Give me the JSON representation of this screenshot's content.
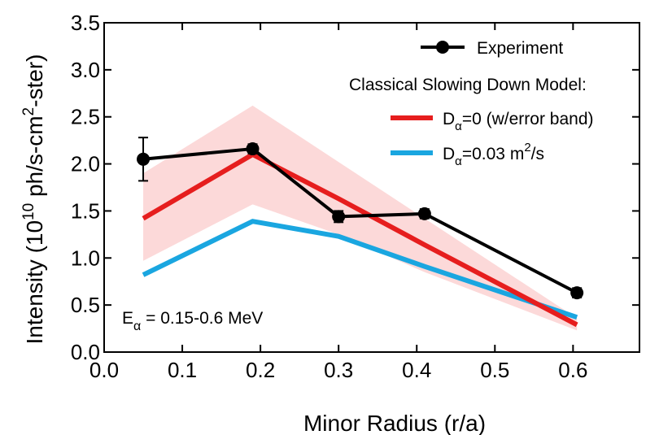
{
  "chart_data": {
    "type": "line",
    "title": "",
    "xlabel": "Minor Radius (r/a)",
    "ylabel": {
      "prefix": "Intensity (10",
      "exp1": "10",
      "mid": " ph/s-cm",
      "exp2": "2",
      "suffix": "-ster)"
    },
    "xlim": [
      0.0,
      0.685
    ],
    "ylim": [
      0.0,
      3.5
    ],
    "x_ticks": [
      "0.0",
      "0.1",
      "0.2",
      "0.3",
      "0.4",
      "0.5",
      "0.6"
    ],
    "x_tick_values": [
      0.0,
      0.1,
      0.2,
      0.3,
      0.4,
      0.5,
      0.6
    ],
    "y_ticks": [
      "0.0",
      "0.5",
      "1.0",
      "1.5",
      "2.0",
      "2.5",
      "3.0",
      "3.5"
    ],
    "y_tick_values": [
      0.0,
      0.5,
      1.0,
      1.5,
      2.0,
      2.5,
      3.0,
      3.5
    ],
    "grid": false,
    "legend_position": "top-right",
    "legend": {
      "experiment": "Experiment",
      "model_heading": "Classical Slowing Down Model:",
      "d0_main": "D",
      "d0_sub": "α",
      "d0_rest": "=0 (w/error band)",
      "d003_main": "D",
      "d003_sub": "α",
      "d003_rest": "=0.03 m",
      "d003_sup": "2",
      "d003_tail": "/s"
    },
    "annotation": {
      "main": "E",
      "sub": "α",
      "rest": " = 0.15-0.6 MeV"
    },
    "series": [
      {
        "name": "Experiment",
        "color": "#000000",
        "x": [
          0.05,
          0.19,
          0.3,
          0.41,
          0.605
        ],
        "y": [
          2.05,
          2.16,
          1.44,
          1.47,
          0.63
        ],
        "err": [
          0.23,
          0.05,
          0.06,
          0.05,
          0.05
        ],
        "markers": true
      },
      {
        "name": "Dα=0",
        "color": "#e61e1e",
        "x": [
          0.05,
          0.19,
          0.3,
          0.41,
          0.605
        ],
        "y": [
          1.42,
          2.1,
          1.63,
          1.14,
          0.29
        ]
      },
      {
        "name": "Dα=0.03 m2/s",
        "color": "#1aa6e0",
        "x": [
          0.05,
          0.19,
          0.3,
          0.41,
          0.605
        ],
        "y": [
          0.82,
          1.39,
          1.23,
          0.91,
          0.37
        ]
      }
    ],
    "error_band": {
      "color": "#fcd9d9",
      "x": [
        0.05,
        0.19,
        0.3,
        0.41,
        0.605
      ],
      "upper": [
        1.9,
        2.62,
        2.02,
        1.42,
        0.36
      ],
      "lower": [
        0.97,
        1.57,
        1.25,
        0.85,
        0.23
      ]
    }
  }
}
